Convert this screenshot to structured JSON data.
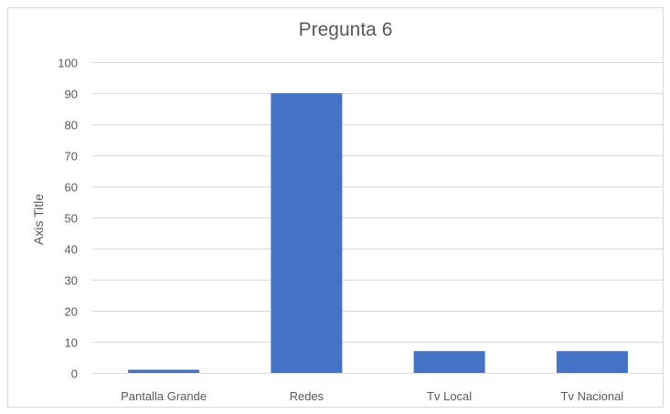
{
  "chart_data": {
    "type": "bar",
    "title": "Pregunta 6",
    "ylabel": "Axis Title",
    "xlabel": "",
    "categories": [
      "Pantalla Grande",
      "Redes",
      "Tv Local",
      "Tv Nacional"
    ],
    "values": [
      1,
      90,
      7,
      7
    ],
    "ylim": [
      0,
      100
    ],
    "yticks": [
      0,
      10,
      20,
      30,
      40,
      50,
      60,
      70,
      80,
      90,
      100
    ],
    "grid": true,
    "legend": "none",
    "bar_color": "#4472c4"
  }
}
